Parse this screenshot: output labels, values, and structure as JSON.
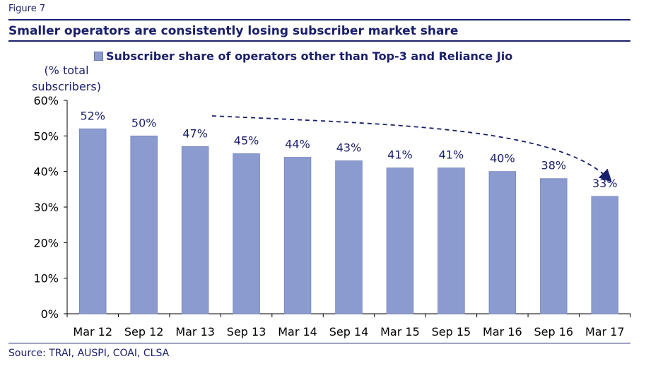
{
  "figure_label": "Figure 7",
  "title": "Smaller operators are consistently losing subscriber market share",
  "source": "Source: TRAI, AUSPI, COAI, CLSA",
  "colors": {
    "bar": "#8b9bd0",
    "text": "#1a1f6b",
    "rule": "#1a1f6b"
  },
  "chart_data": {
    "type": "bar",
    "title": "Smaller operators are consistently losing subscriber market share",
    "ylabel_line1": "(% total",
    "ylabel_line2": "subscribers)",
    "legend": "Subscriber share of operators other than Top-3 and Reliance Jio",
    "categories": [
      "Mar 12",
      "Sep 12",
      "Mar 13",
      "Sep 13",
      "Mar 14",
      "Sep 14",
      "Mar 15",
      "Sep 15",
      "Mar 16",
      "Sep 16",
      "Mar 17"
    ],
    "series": [
      {
        "name": "Subscriber share of operators other than Top-3 and Reliance Jio",
        "values": [
          52,
          50,
          47,
          45,
          44,
          43,
          41,
          41,
          40,
          38,
          33
        ]
      }
    ],
    "data_labels": [
      "52%",
      "50%",
      "47%",
      "45%",
      "44%",
      "43%",
      "41%",
      "41%",
      "40%",
      "38%",
      "33%"
    ],
    "yticks": [
      "0%",
      "10%",
      "20%",
      "30%",
      "40%",
      "50%",
      "60%"
    ],
    "ylim": [
      0,
      60
    ],
    "ytick_step": 10,
    "annotation": "dashed downward trend arrow",
    "grid": false
  }
}
